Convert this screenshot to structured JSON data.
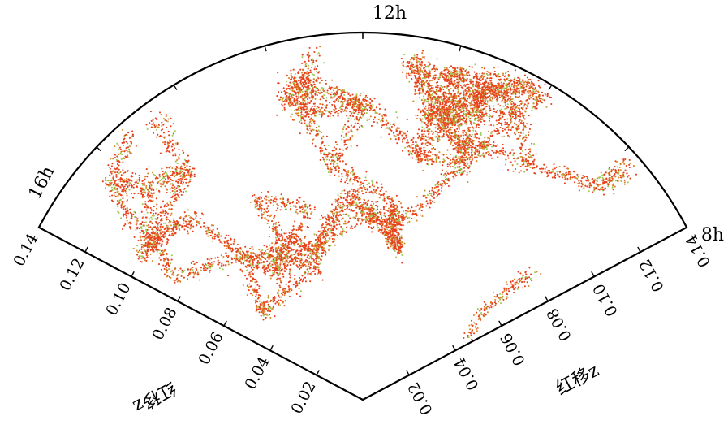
{
  "chart_data": {
    "type": "scatter",
    "title": "",
    "projection": "polar-wedge",
    "angular_axis": {
      "unit": "hour of right ascension",
      "labels": [
        {
          "hour": 16,
          "text": "16h"
        },
        {
          "hour": 12,
          "text": "12h"
        },
        {
          "hour": 8,
          "text": "8h"
        }
      ],
      "range_hours": [
        8,
        16
      ]
    },
    "radial_axis": {
      "label": "红移z",
      "range": [
        0,
        0.14
      ],
      "ticks": [
        0.02,
        0.04,
        0.06,
        0.08,
        0.1,
        0.12,
        0.14
      ],
      "tick_labels": [
        "0.02",
        "0.04",
        "0.06",
        "0.08",
        "0.10",
        "0.12",
        "0.14"
      ]
    },
    "colors": {
      "dense": "#e8401c",
      "mid": "#d98a2a",
      "sparse": "#9ccc57",
      "nearby": "#5fb8c9",
      "frame": "#000000"
    },
    "series": [
      {
        "description_key": "galaxy points",
        "structures": [
          {
            "ra_hours": 12.3,
            "z_range": [
              0.07,
              0.085
            ]
          },
          {
            "ra_hours": 12.0,
            "z_range": [
              0.07,
              0.09
            ]
          },
          {
            "ra_hours": 13.2,
            "z_range": [
              0.045,
              0.06
            ]
          },
          {
            "ra_hours": 11.3,
            "z_range": [
              0.055,
              0.07
            ]
          },
          {
            "ra_hours": 14.8,
            "z_range": [
              0.08,
              0.11
            ]
          },
          {
            "ra_hours": 9.6,
            "z_range": [
              0.08,
              0.11
            ]
          }
        ],
        "point_count_approx": 9000
      }
    ]
  }
}
